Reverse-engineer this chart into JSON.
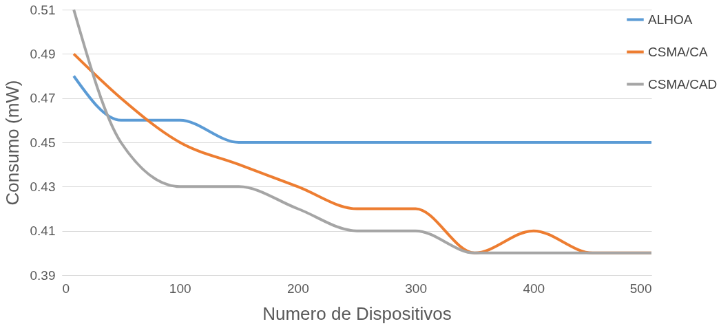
{
  "chart_data": {
    "type": "line",
    "xlabel": "Numero de Dispositivos",
    "ylabel": "Consumo (mW)",
    "x": [
      10,
      50,
      100,
      150,
      200,
      250,
      300,
      350,
      400,
      450,
      500
    ],
    "series": [
      {
        "name": "ALHOA",
        "color": "#5b9bd5",
        "values": [
          0.48,
          0.46,
          0.46,
          0.45,
          0.45,
          0.45,
          0.45,
          0.45,
          0.45,
          0.45,
          0.45
        ]
      },
      {
        "name": "CSMA/CA",
        "color": "#ed7d31",
        "values": [
          0.49,
          0.47,
          0.45,
          0.44,
          0.43,
          0.42,
          0.42,
          0.4,
          0.41,
          0.4,
          0.4
        ]
      },
      {
        "name": "CSMA/CAD",
        "color": "#a5a5a5",
        "values": [
          0.51,
          0.45,
          0.43,
          0.43,
          0.42,
          0.41,
          0.41,
          0.4,
          0.4,
          0.4,
          0.4
        ]
      }
    ],
    "xlim": [
      0,
      500
    ],
    "xticks": [
      0,
      100,
      200,
      300,
      400,
      500
    ],
    "ylim": [
      0.39,
      0.51
    ],
    "yticks": [
      0.39,
      0.41,
      0.43,
      0.45,
      0.47,
      0.49,
      0.51
    ],
    "grid": "y",
    "legend": "right",
    "marker": "none",
    "line_style": "solid"
  }
}
